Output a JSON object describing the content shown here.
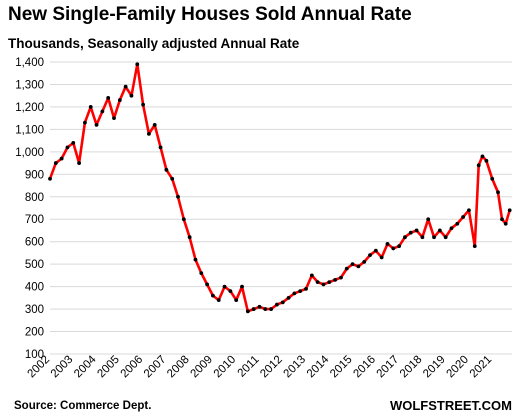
{
  "chart_data": {
    "type": "line",
    "title": "New Single-Family Houses Sold Annual Rate",
    "subtitle": "Thousands, Seasonally adjusted Annual Rate",
    "source": "Source: Commerce Dept.",
    "brand": "WOLFSTREET.COM",
    "ylim": [
      100,
      1400
    ],
    "yticks": [
      100,
      200,
      300,
      400,
      500,
      600,
      700,
      800,
      900,
      1000,
      1100,
      1200,
      1300,
      1400
    ],
    "ytick_labels": [
      "100",
      "200",
      "300",
      "400",
      "500",
      "600",
      "700",
      "800",
      "900",
      "1,000",
      "1,100",
      "1,200",
      "1,300",
      "1,400"
    ],
    "xlim": [
      2002,
      2021.85
    ],
    "xticks": [
      2002,
      2003,
      2004,
      2005,
      2006,
      2007,
      2008,
      2009,
      2010,
      2011,
      2012,
      2013,
      2014,
      2015,
      2016,
      2017,
      2018,
      2019,
      2020,
      2021
    ],
    "grid": true,
    "line_color": "#ff0000",
    "marker_color": "#000000",
    "x": [
      2002.0,
      2002.25,
      2002.5,
      2002.75,
      2003.0,
      2003.25,
      2003.5,
      2003.75,
      2004.0,
      2004.25,
      2004.5,
      2004.75,
      2005.0,
      2005.25,
      2005.5,
      2005.75,
      2006.0,
      2006.25,
      2006.5,
      2006.75,
      2007.0,
      2007.25,
      2007.5,
      2007.75,
      2008.0,
      2008.25,
      2008.5,
      2008.75,
      2009.0,
      2009.25,
      2009.5,
      2009.75,
      2010.0,
      2010.25,
      2010.5,
      2010.75,
      2011.0,
      2011.25,
      2011.5,
      2011.75,
      2012.0,
      2012.25,
      2012.5,
      2012.75,
      2013.0,
      2013.25,
      2013.5,
      2013.75,
      2014.0,
      2014.25,
      2014.5,
      2014.75,
      2015.0,
      2015.25,
      2015.5,
      2015.75,
      2016.0,
      2016.25,
      2016.5,
      2016.75,
      2017.0,
      2017.25,
      2017.5,
      2017.75,
      2018.0,
      2018.25,
      2018.5,
      2018.75,
      2019.0,
      2019.25,
      2019.5,
      2019.75,
      2020.0,
      2020.25,
      2020.42,
      2020.58,
      2020.75,
      2021.0,
      2021.25,
      2021.42,
      2021.58,
      2021.75
    ],
    "values": [
      880,
      950,
      970,
      1020,
      1040,
      950,
      1130,
      1200,
      1120,
      1180,
      1240,
      1150,
      1230,
      1290,
      1250,
      1390,
      1210,
      1080,
      1120,
      1020,
      920,
      880,
      800,
      700,
      620,
      520,
      460,
      410,
      360,
      340,
      400,
      380,
      340,
      400,
      290,
      300,
      310,
      300,
      300,
      320,
      330,
      350,
      370,
      380,
      390,
      450,
      420,
      410,
      420,
      430,
      440,
      480,
      500,
      490,
      510,
      540,
      560,
      530,
      590,
      570,
      580,
      620,
      640,
      650,
      620,
      700,
      620,
      650,
      620,
      660,
      680,
      710,
      740,
      580,
      940,
      980,
      960,
      880,
      820,
      700,
      680,
      740
    ]
  }
}
